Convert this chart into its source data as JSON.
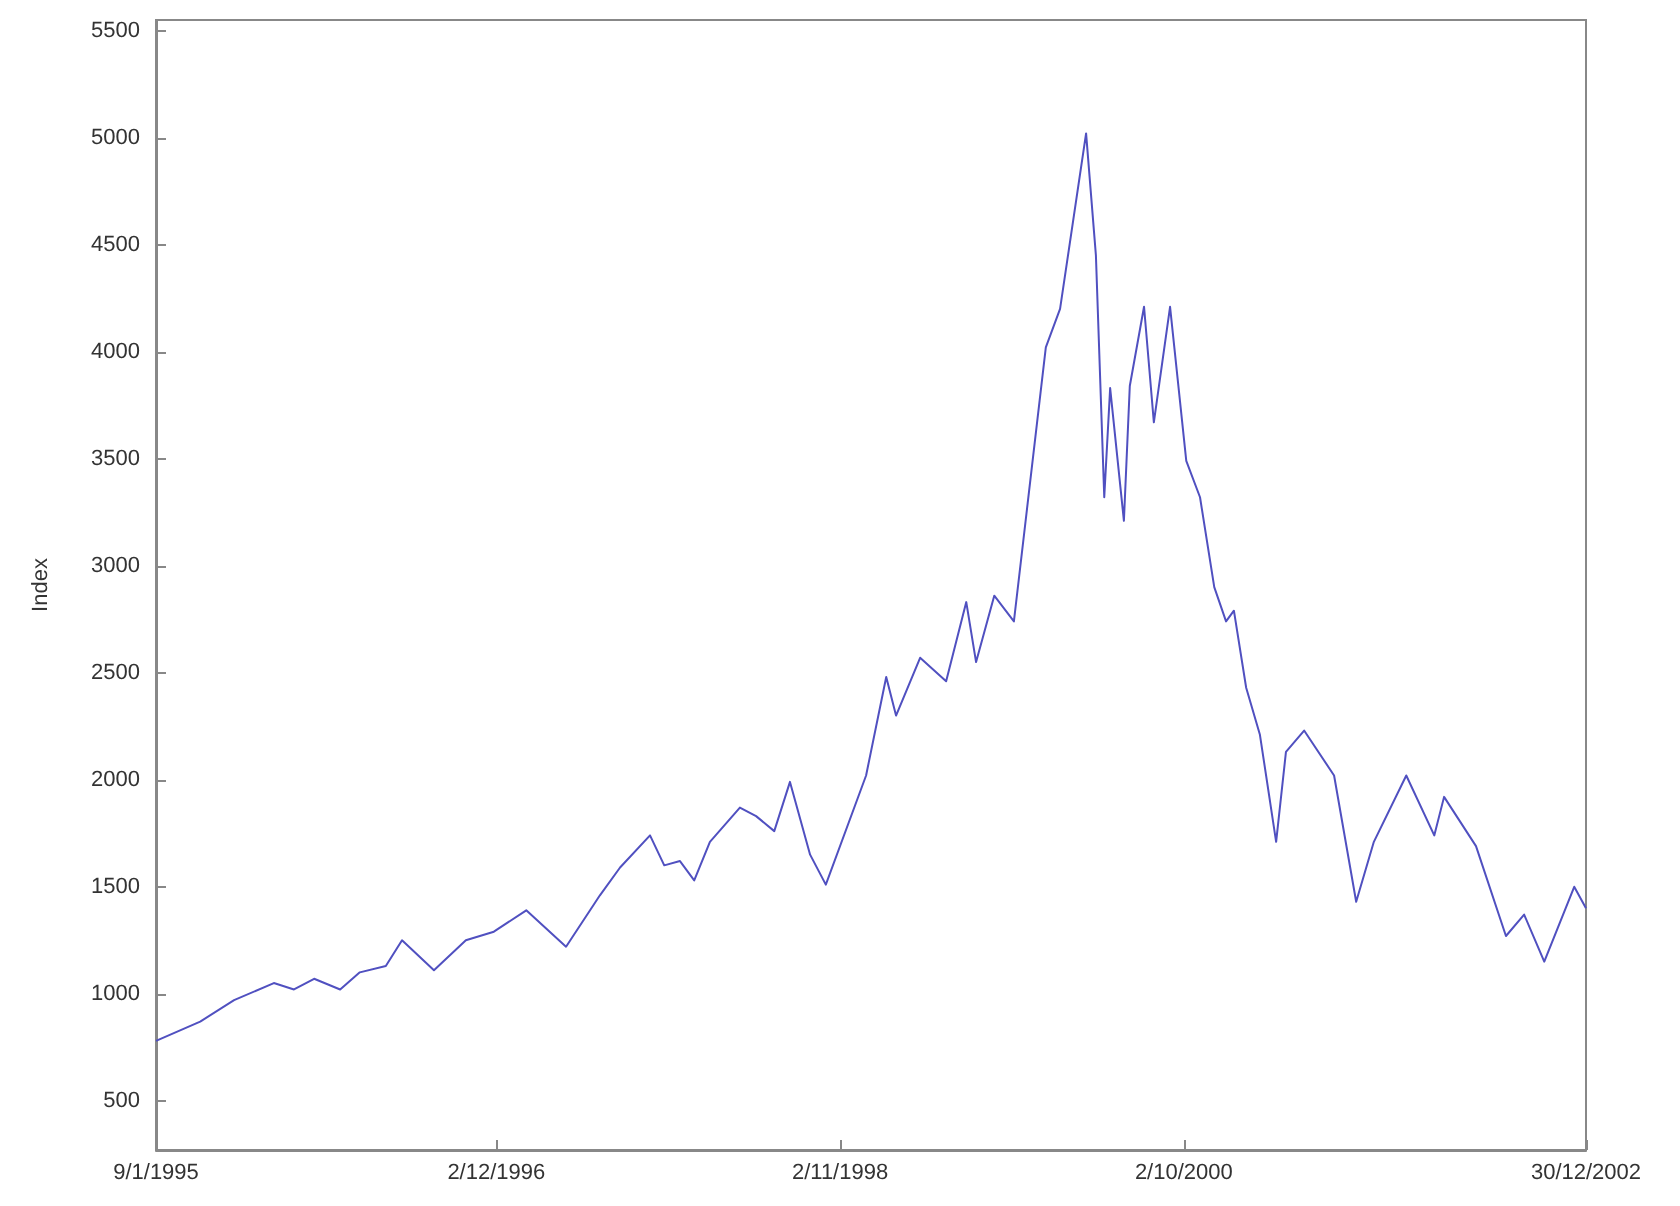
{
  "chart_data": {
    "type": "line",
    "ylabel": "Index",
    "x": [
      "1995-01-09",
      "1995-04-09",
      "1995-06-17",
      "1995-09-06",
      "1995-10-17",
      "1995-11-27",
      "1996-01-19",
      "1996-02-28",
      "1996-04-21",
      "1996-05-24",
      "1996-07-28",
      "1996-10-01",
      "1996-11-27",
      "1997-02-01",
      "1997-04-23",
      "1997-07-01",
      "1997-08-11",
      "1997-10-11",
      "1997-11-09",
      "1997-12-11",
      "1998-01-09",
      "1998-02-10",
      "1998-04-12",
      "1998-05-15",
      "1998-06-21",
      "1998-07-23",
      "1998-09-02",
      "1998-10-04",
      "1998-12-25",
      "1999-02-04",
      "1999-02-24",
      "1999-04-14",
      "1999-06-06",
      "1999-07-17",
      "1999-08-06",
      "1999-09-12",
      "1999-10-22",
      "1999-12-26",
      "2000-01-24",
      "2000-03-17",
      "2000-04-06",
      "2000-04-23",
      "2000-05-05",
      "2000-06-02",
      "2000-06-14",
      "2000-07-13",
      "2000-08-02",
      "2000-09-04",
      "2000-10-07",
      "2000-11-04",
      "2000-12-03",
      "2000-12-27",
      "2001-01-12",
      "2001-02-06",
      "2001-03-06",
      "2001-04-08",
      "2001-04-28",
      "2001-06-04",
      "2001-08-04",
      "2001-09-18",
      "2001-10-24",
      "2001-12-29",
      "2002-02-24",
      "2002-03-16",
      "2002-05-20",
      "2002-07-20",
      "2002-08-26",
      "2002-10-06",
      "2002-12-06",
      "2002-12-30"
    ],
    "series": [
      {
        "color": "#5050c0",
        "values": [
          780,
          870,
          970,
          1050,
          1020,
          1070,
          1020,
          1100,
          1130,
          1250,
          1110,
          1250,
          1290,
          1390,
          1220,
          1460,
          1590,
          1740,
          1600,
          1620,
          1530,
          1710,
          1870,
          1830,
          1760,
          1990,
          1650,
          1510,
          2020,
          2480,
          2300,
          2570,
          2460,
          2830,
          2550,
          2860,
          2740,
          4020,
          4200,
          5020,
          4450,
          3320,
          3830,
          3210,
          3840,
          4210,
          3670,
          4210,
          3490,
          3320,
          2900,
          2740,
          2790,
          2430,
          2210,
          1710,
          2130,
          2230,
          2020,
          1430,
          1710,
          2020,
          1740,
          1920,
          1690,
          1270,
          1370,
          1150,
          1500,
          1400
        ]
      }
    ],
    "xlim": [
      "1995-01-09",
      "2002-12-30"
    ],
    "xticks": [
      {
        "value": "1995-01-09",
        "label": "9/1/1995"
      },
      {
        "value": "1996-12-02",
        "label": "2/12/1996"
      },
      {
        "value": "1998-11-02",
        "label": "2/11/1998"
      },
      {
        "value": "2000-10-02",
        "label": "2/10/2000"
      },
      {
        "value": "2002-12-30",
        "label": "30/12/2002"
      }
    ],
    "ylim": [
      270,
      5550
    ],
    "yticks": [
      500,
      1000,
      1500,
      2000,
      2500,
      3000,
      3500,
      4000,
      4500,
      5000,
      5500
    ],
    "grid": false,
    "marker": "none",
    "line_style": "solid"
  }
}
